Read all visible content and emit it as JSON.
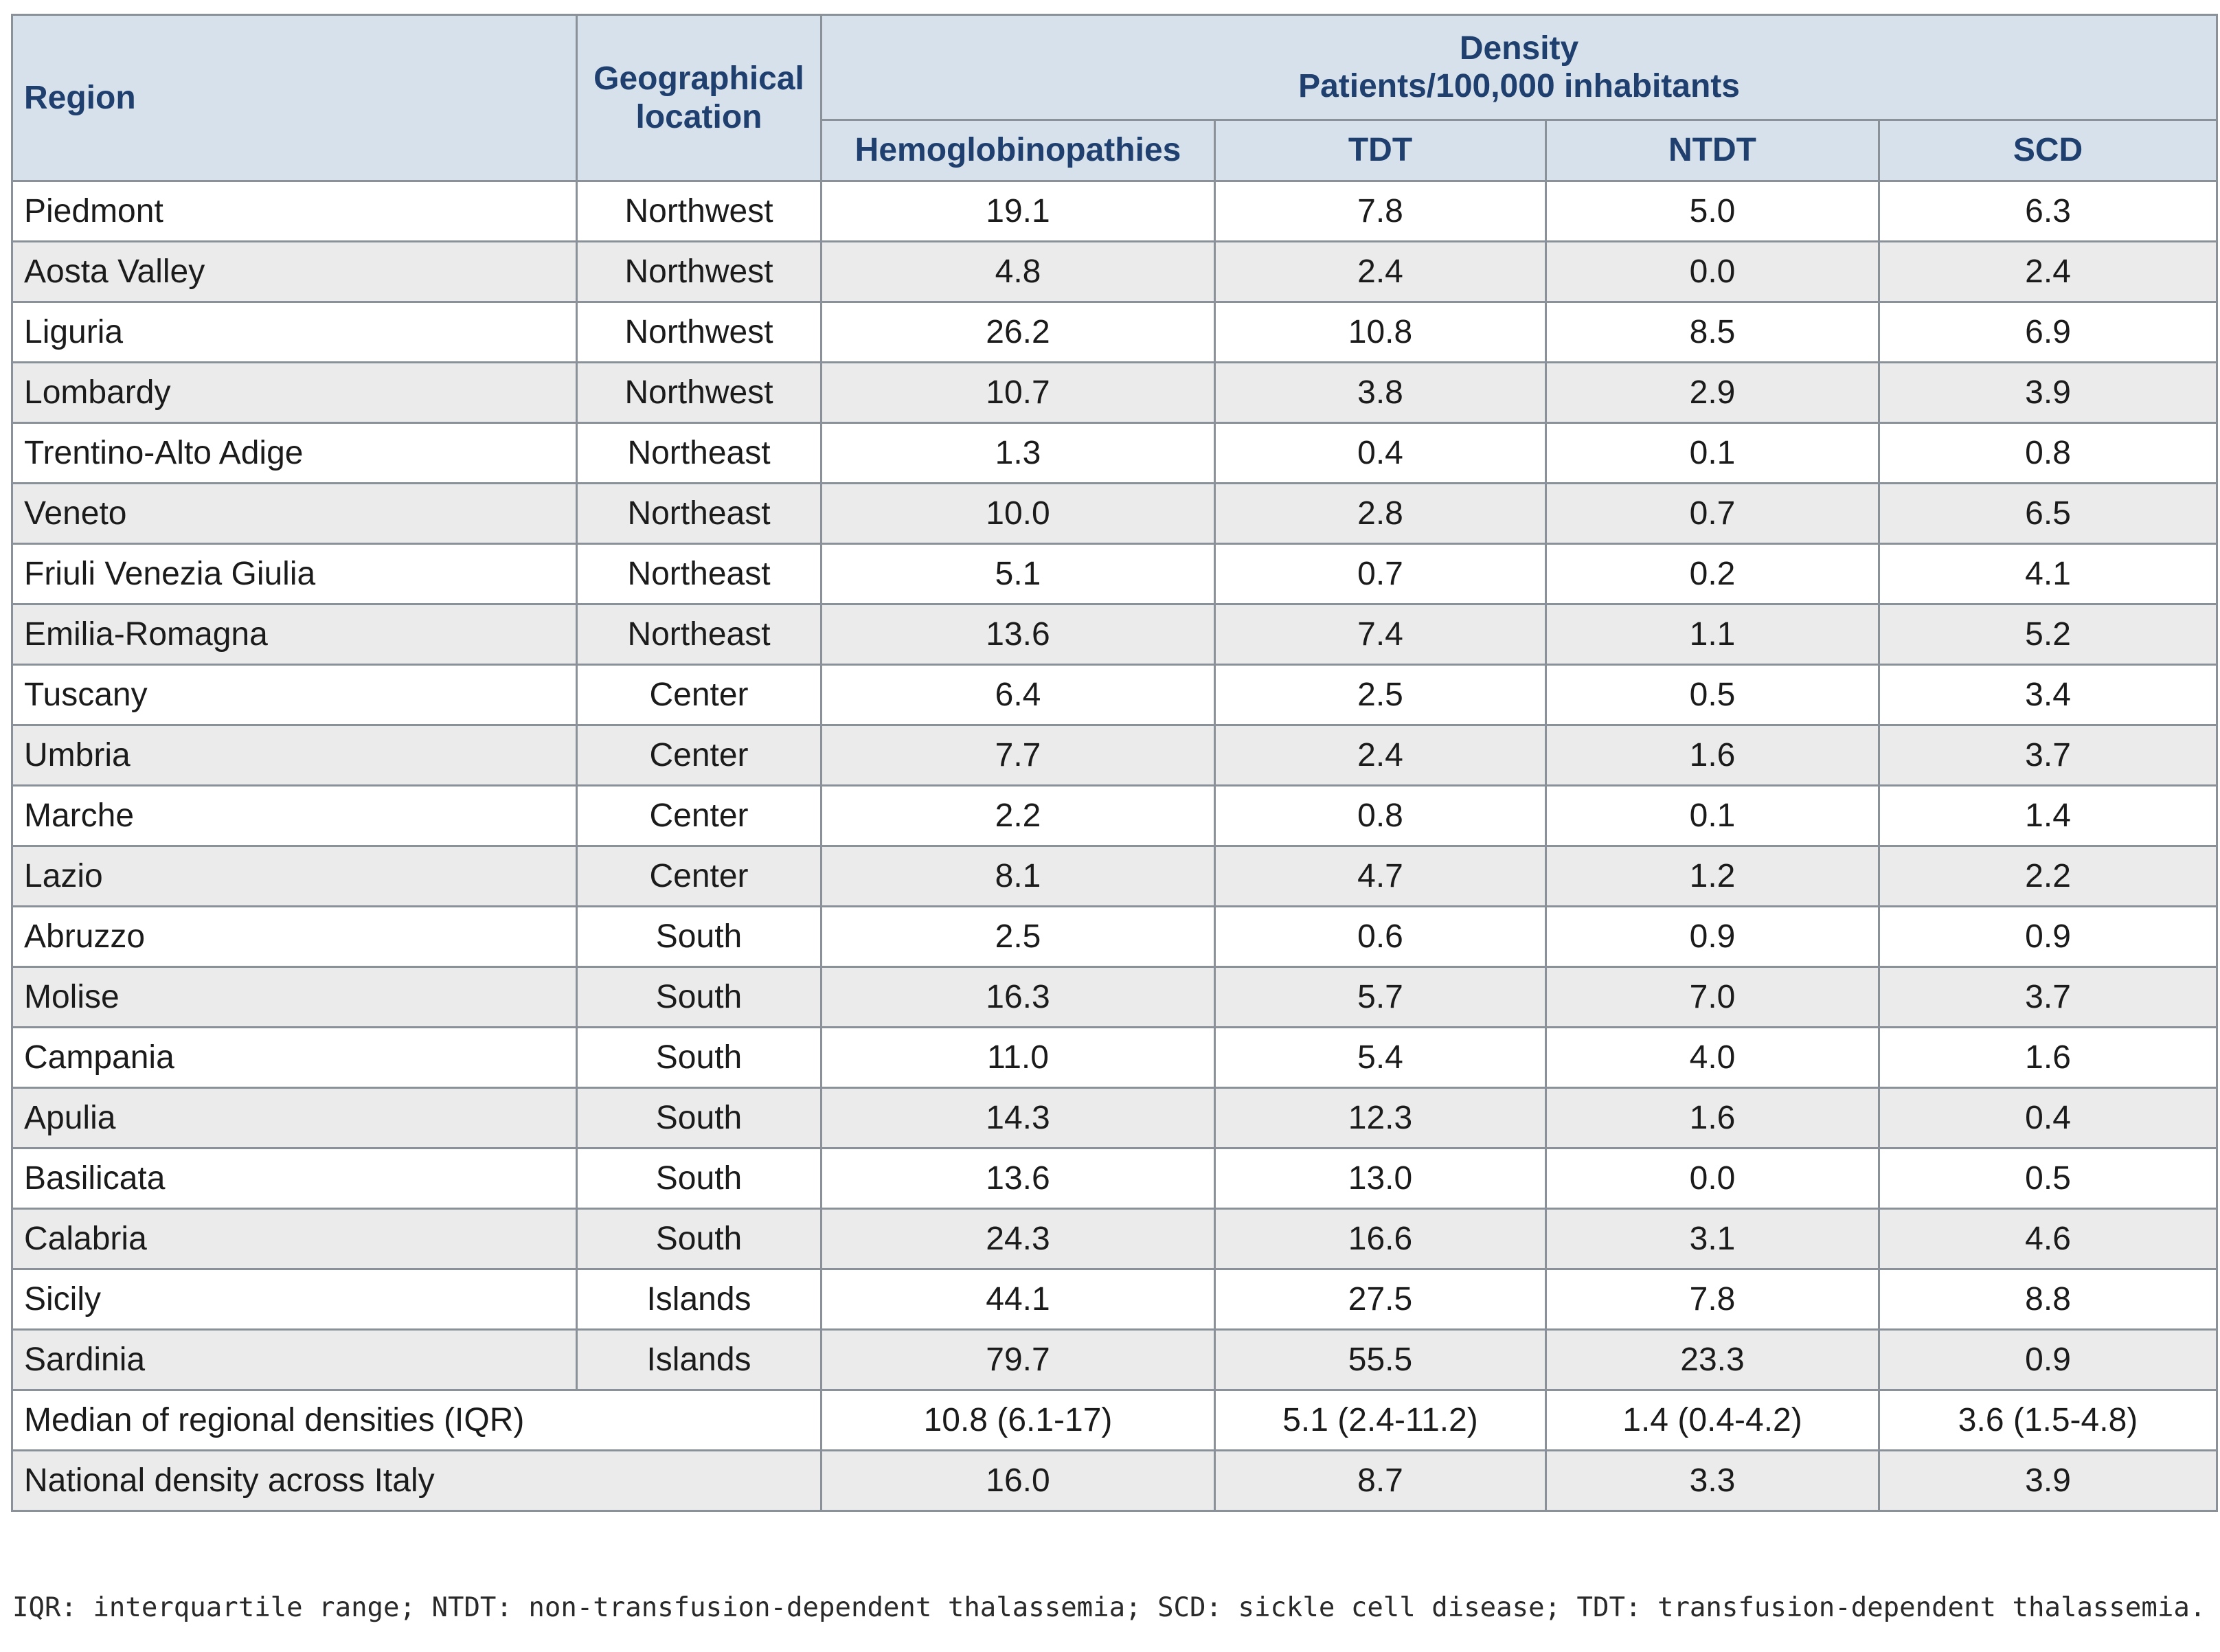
{
  "header": {
    "region": "Region",
    "geo": "Geographical location",
    "density": "Density",
    "density_unit": "Patients/100,000 inhabitants",
    "hemo": "Hemoglobinopathies",
    "tdt": "TDT",
    "ntdt": "NTDT",
    "scd": "SCD"
  },
  "rows": [
    {
      "region": "Piedmont",
      "geo": "Northwest",
      "hemo": "19.1",
      "tdt": "7.8",
      "ntdt": "5.0",
      "scd": "6.3"
    },
    {
      "region": "Aosta Valley",
      "geo": "Northwest",
      "hemo": "4.8",
      "tdt": "2.4",
      "ntdt": "0.0",
      "scd": "2.4"
    },
    {
      "region": "Liguria",
      "geo": "Northwest",
      "hemo": "26.2",
      "tdt": "10.8",
      "ntdt": "8.5",
      "scd": "6.9"
    },
    {
      "region": "Lombardy",
      "geo": "Northwest",
      "hemo": "10.7",
      "tdt": "3.8",
      "ntdt": "2.9",
      "scd": "3.9"
    },
    {
      "region": "Trentino-Alto Adige",
      "geo": "Northeast",
      "hemo": "1.3",
      "tdt": "0.4",
      "ntdt": "0.1",
      "scd": "0.8"
    },
    {
      "region": "Veneto",
      "geo": "Northeast",
      "hemo": "10.0",
      "tdt": "2.8",
      "ntdt": "0.7",
      "scd": "6.5"
    },
    {
      "region": "Friuli Venezia Giulia",
      "geo": "Northeast",
      "hemo": "5.1",
      "tdt": "0.7",
      "ntdt": "0.2",
      "scd": "4.1"
    },
    {
      "region": "Emilia-Romagna",
      "geo": "Northeast",
      "hemo": "13.6",
      "tdt": "7.4",
      "ntdt": "1.1",
      "scd": "5.2"
    },
    {
      "region": "Tuscany",
      "geo": "Center",
      "hemo": "6.4",
      "tdt": "2.5",
      "ntdt": "0.5",
      "scd": "3.4"
    },
    {
      "region": "Umbria",
      "geo": "Center",
      "hemo": "7.7",
      "tdt": "2.4",
      "ntdt": "1.6",
      "scd": "3.7"
    },
    {
      "region": "Marche",
      "geo": "Center",
      "hemo": "2.2",
      "tdt": "0.8",
      "ntdt": "0.1",
      "scd": "1.4"
    },
    {
      "region": "Lazio",
      "geo": "Center",
      "hemo": "8.1",
      "tdt": "4.7",
      "ntdt": "1.2",
      "scd": "2.2"
    },
    {
      "region": "Abruzzo",
      "geo": "South",
      "hemo": "2.5",
      "tdt": "0.6",
      "ntdt": "0.9",
      "scd": "0.9"
    },
    {
      "region": "Molise",
      "geo": "South",
      "hemo": "16.3",
      "tdt": "5.7",
      "ntdt": "7.0",
      "scd": "3.7"
    },
    {
      "region": "Campania",
      "geo": "South",
      "hemo": "11.0",
      "tdt": "5.4",
      "ntdt": "4.0",
      "scd": "1.6"
    },
    {
      "region": "Apulia",
      "geo": "South",
      "hemo": "14.3",
      "tdt": "12.3",
      "ntdt": "1.6",
      "scd": "0.4"
    },
    {
      "region": "Basilicata",
      "geo": "South",
      "hemo": "13.6",
      "tdt": "13.0",
      "ntdt": "0.0",
      "scd": "0.5"
    },
    {
      "region": "Calabria",
      "geo": "South",
      "hemo": "24.3",
      "tdt": "16.6",
      "ntdt": "3.1",
      "scd": "4.6"
    },
    {
      "region": "Sicily",
      "geo": "Islands",
      "hemo": "44.1",
      "tdt": "27.5",
      "ntdt": "7.8",
      "scd": "8.8"
    },
    {
      "region": "Sardinia",
      "geo": "Islands",
      "hemo": "79.7",
      "tdt": "55.5",
      "ntdt": "23.3",
      "scd": "0.9"
    }
  ],
  "median": {
    "label": "Median of regional densities (IQR)",
    "hemo": "10.8 (6.1-17)",
    "tdt": "5.1 (2.4-11.2)",
    "ntdt": "1.4 (0.4-4.2)",
    "scd": "3.6 (1.5-4.8)"
  },
  "national": {
    "label": "National density across Italy",
    "hemo": "16.0",
    "tdt": "8.7",
    "ntdt": "3.3",
    "scd": "3.9"
  },
  "footnote": "IQR: interquartile range; NTDT: non-transfusion-dependent thalassemia; SCD: sickle cell disease; TDT: transfusion-dependent thalassemia."
}
